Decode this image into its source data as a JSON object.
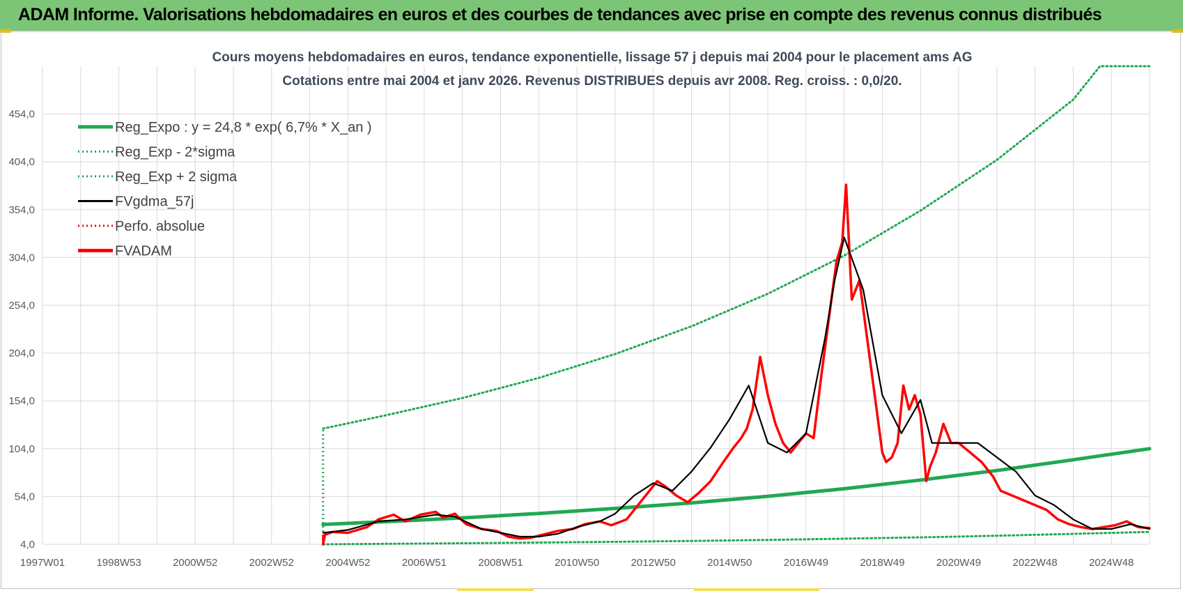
{
  "banner": {
    "title": "ADAM Informe. Valorisations hebdomadaires en euros et des courbes de tendances avec prise en compte des revenus connus distribués"
  },
  "colors": {
    "banner_bg": "#7cc576",
    "green": "#21a852",
    "red": "#ff0000",
    "black": "#000000",
    "grid": "#d9d9d9"
  },
  "chart_data": {
    "type": "line",
    "title": "Cours moyens hebdomadaires en euros, tendance exponentielle, lissage 57 j depuis mai 2004 pour le placement ams AG",
    "subtitle": "Cotations entre mai 2004 et janv 2026. Revenus DISTRIBUES depuis avr 2008. Reg. croiss. : 0,0/20.",
    "xlabel": "",
    "ylabel": "",
    "x_range": [
      1997.0,
      2026.0
    ],
    "ylim": [
      4,
      504
    ],
    "y_ticks": [
      "4,0",
      "54,0",
      "104,0",
      "154,0",
      "204,0",
      "254,0",
      "304,0",
      "354,0",
      "404,0",
      "454,0"
    ],
    "y_tick_values": [
      4,
      54,
      104,
      154,
      204,
      254,
      304,
      354,
      404,
      454
    ],
    "x_tick_labels": [
      "1997W01",
      "1998W53",
      "2000W52",
      "2002W52",
      "2004W52",
      "2006W51",
      "2008W51",
      "2010W50",
      "2012W50",
      "2014W50",
      "2016W49",
      "2018W49",
      "2020W49",
      "2022W48",
      "2024W48"
    ],
    "x_tick_values": [
      1997.0,
      1999.0,
      2001.0,
      2003.0,
      2005.0,
      2007.0,
      2009.0,
      2011.0,
      2013.0,
      2015.0,
      2017.0,
      2019.0,
      2021.0,
      2023.0,
      2025.0
    ],
    "legend_position": "top-left",
    "legend": [
      {
        "label": "Reg_Expo : y = 24,8 * exp( 6,7% *  X_an )",
        "color": "#21a852",
        "style": "solid-thick"
      },
      {
        "label": "Reg_Exp - 2*sigma",
        "color": "#21a852",
        "style": "dotted"
      },
      {
        "label": "Reg_Exp + 2 sigma",
        "color": "#21a852",
        "style": "dotted"
      },
      {
        "label": "FVgdma_57j",
        "color": "#000000",
        "style": "solid"
      },
      {
        "label": "Perfo. absolue",
        "color": "#ff0000",
        "style": "dotted"
      },
      {
        "label": "FVADAM",
        "color": "#ff0000",
        "style": "solid-thick"
      }
    ],
    "series": [
      {
        "name": "Reg_Expo : y = 24,8 * exp( 6,7% *  X_an )",
        "color": "#21a852",
        "style": "solid-thick",
        "x": [
          2004.35,
          2006,
          2008,
          2010,
          2012,
          2014,
          2016,
          2018,
          2020,
          2022,
          2024,
          2026
        ],
        "y": [
          24.8,
          27.7,
          31.6,
          36.3,
          41.5,
          47.3,
          54.2,
          62.1,
          71.2,
          81.2,
          92.4,
          104.0
        ]
      },
      {
        "name": "Reg_Exp - 2*sigma",
        "color": "#21a852",
        "style": "dotted",
        "x": [
          2004.35,
          2006,
          2008,
          2010,
          2012,
          2014,
          2016,
          2018,
          2020,
          2022,
          2024,
          2026
        ],
        "y": [
          4.0,
          4.5,
          5.1,
          5.8,
          6.6,
          7.5,
          8.6,
          9.9,
          11.3,
          13.0,
          14.9,
          17.0
        ]
      },
      {
        "name": "Reg_Exp + 2 sigma",
        "color": "#21a852",
        "style": "dotted",
        "x": [
          2004.35,
          2006,
          2008,
          2010,
          2012,
          2014,
          2016,
          2018,
          2020,
          2022,
          2024,
          2024.7,
          2026
        ],
        "y": [
          125,
          139,
          157,
          178,
          203,
          232,
          266,
          306,
          353,
          406,
          469,
          504,
          504
        ]
      },
      {
        "name": "FVgdma_57j",
        "color": "#000000",
        "style": "solid",
        "x": [
          2004.35,
          2005,
          2005.8,
          2006.5,
          2007.3,
          2007.8,
          2008.5,
          2009,
          2009.5,
          2010,
          2010.5,
          2011,
          2011.6,
          2012,
          2012.5,
          2013,
          2013.5,
          2014,
          2014.5,
          2015,
          2015.5,
          2016,
          2016.5,
          2017,
          2017.5,
          2017.75,
          2018,
          2018.5,
          2019,
          2019.5,
          2020,
          2020.3,
          2020.8,
          2021.5,
          2022,
          2022.5,
          2023,
          2023.5,
          2024,
          2024.5,
          2025,
          2025.5,
          2026
        ],
        "y": [
          16,
          19,
          28,
          30,
          35,
          33,
          20,
          16,
          12,
          12,
          15,
          22,
          28,
          36,
          55,
          68,
          60,
          80,
          105,
          135,
          170,
          110,
          100,
          120,
          220,
          280,
          325,
          270,
          160,
          120,
          155,
          110,
          110,
          110,
          95,
          80,
          55,
          45,
          30,
          20,
          20,
          25,
          20
        ]
      },
      {
        "name": "FVADAM",
        "color": "#ff0000",
        "style": "solid-thick",
        "x": [
          2004.35,
          2004.4,
          2004.6,
          2005,
          2005.5,
          2005.8,
          2006.2,
          2006.5,
          2006.9,
          2007.3,
          2007.5,
          2007.8,
          2008.1,
          2008.5,
          2008.9,
          2009.2,
          2009.5,
          2009.8,
          2010.2,
          2010.5,
          2010.9,
          2011.2,
          2011.6,
          2011.9,
          2012.3,
          2012.6,
          2012.9,
          2013.1,
          2013.3,
          2013.6,
          2013.9,
          2014.2,
          2014.5,
          2014.8,
          2015.1,
          2015.3,
          2015.45,
          2015.6,
          2015.8,
          2016.0,
          2016.2,
          2016.4,
          2016.6,
          2016.8,
          2017.0,
          2017.2,
          2017.4,
          2017.6,
          2017.8,
          2017.95,
          2018.05,
          2018.2,
          2018.4,
          2018.6,
          2018.8,
          2019.0,
          2019.1,
          2019.25,
          2019.4,
          2019.55,
          2019.7,
          2019.85,
          2020.0,
          2020.15,
          2020.25,
          2020.4,
          2020.6,
          2020.8,
          2021.0,
          2021.3,
          2021.6,
          2021.9,
          2022.1,
          2022.4,
          2022.7,
          2023.0,
          2023.3,
          2023.6,
          2023.9,
          2024.2,
          2024.5,
          2024.8,
          2025.1,
          2025.4,
          2025.7,
          2026.0
        ],
        "y": [
          4,
          14,
          17,
          16,
          22,
          30,
          35,
          28,
          35,
          38,
          32,
          36,
          25,
          20,
          18,
          12,
          10,
          11,
          15,
          18,
          20,
          25,
          28,
          24,
          30,
          45,
          60,
          70,
          65,
          55,
          48,
          58,
          70,
          88,
          105,
          115,
          125,
          145,
          200,
          160,
          130,
          110,
          100,
          110,
          120,
          115,
          180,
          240,
          300,
          320,
          380,
          260,
          280,
          220,
          160,
          100,
          90,
          95,
          110,
          170,
          145,
          160,
          140,
          70,
          85,
          100,
          130,
          110,
          110,
          100,
          90,
          75,
          60,
          55,
          50,
          45,
          40,
          30,
          25,
          22,
          20,
          22,
          24,
          28,
          22,
          21
        ]
      }
    ]
  }
}
